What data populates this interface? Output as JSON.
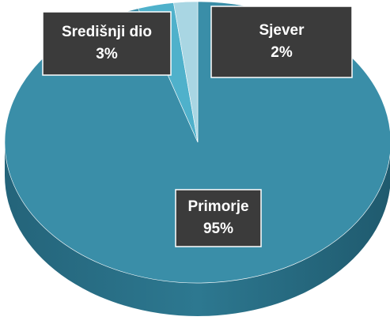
{
  "chart_data": {
    "type": "pie",
    "categories": [
      "Primorje",
      "Središnji dio",
      "Sjever"
    ],
    "values": [
      95,
      3,
      2
    ],
    "value_labels": [
      "95%",
      "3%",
      "2%"
    ],
    "colors": [
      "#3a8ea8",
      "#4fb1cb",
      "#a9d6e3"
    ]
  }
}
